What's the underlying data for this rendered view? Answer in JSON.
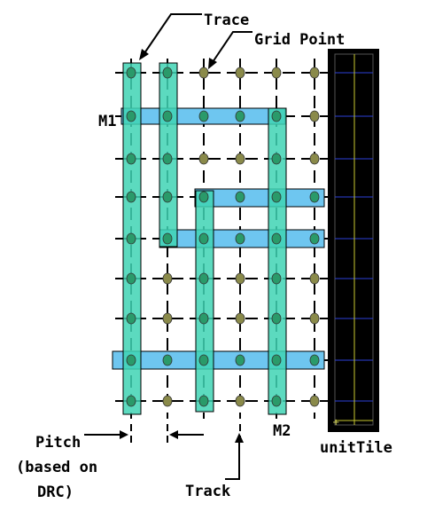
{
  "labels": {
    "trace": "Trace",
    "grid_point": "Grid Point",
    "m1": "M1",
    "m2": "M2",
    "pitch_line1": "Pitch",
    "pitch_line2": "(based on",
    "pitch_line3": "DRC)",
    "track": "Track",
    "unit_tile": "unitTile"
  },
  "colors": {
    "m1_fill": "#6ec6f0",
    "m2_fill": "#3fd4b4",
    "grid_point": "#8a8a4a",
    "grid_point_on_metal": "#2a9a6a",
    "unit_tile_bg": "#000000",
    "unit_tile_grid_h": "#2b3fd8",
    "unit_tile_grid_v": "#c8c830",
    "line": "#000000"
  }
}
